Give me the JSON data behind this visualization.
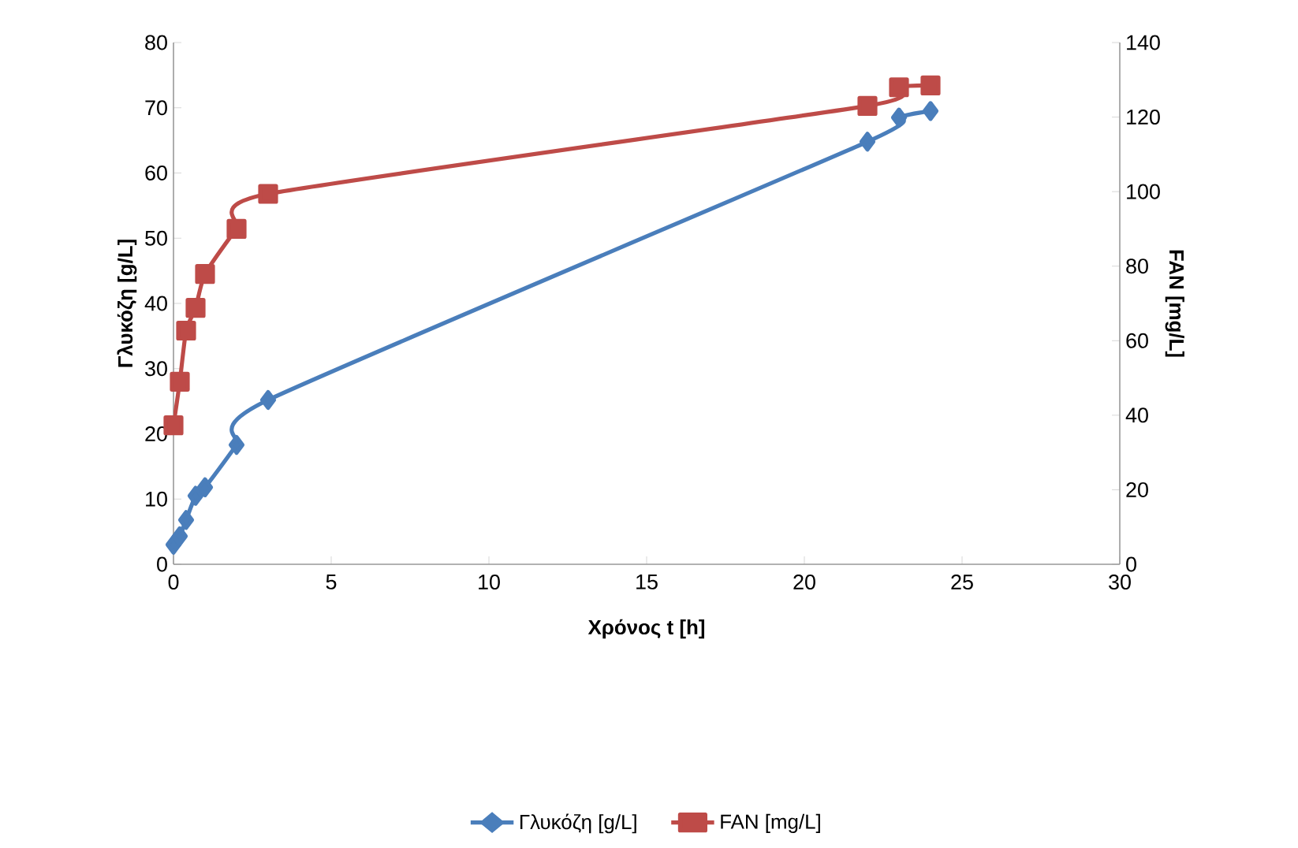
{
  "chart_data": {
    "type": "line",
    "xlabel": "Χρόνος t [h]",
    "ylabel": "Γλυκόζη [g/L]",
    "y2label": "FAN [mg/L]",
    "xlim": [
      0,
      30
    ],
    "xticks": [
      0,
      5,
      10,
      15,
      20,
      25,
      30
    ],
    "ylim": [
      0,
      80
    ],
    "yticks": [
      0,
      10,
      20,
      30,
      40,
      50,
      60,
      70,
      80
    ],
    "y2lim": [
      0,
      140
    ],
    "y2ticks": [
      0,
      20,
      40,
      60,
      80,
      100,
      120,
      140
    ],
    "legend": "bottom",
    "grid": false,
    "series": [
      {
        "name": "Γλυκόζη [g/L]",
        "color": "#4a7ebb",
        "marker": "diamond",
        "x": [
          0,
          0.2,
          0.4,
          0.7,
          1,
          2,
          3,
          22,
          23,
          24
        ],
        "values": [
          3,
          4.3,
          6.8,
          10.5,
          11.8,
          18.3,
          25.2,
          64.8,
          68.5,
          69.5
        ]
      },
      {
        "name": "FAN [mg/L]",
        "color": "#be4b48",
        "marker": "square",
        "axis": "y2",
        "x": [
          0,
          0.2,
          0.4,
          0.7,
          1,
          2,
          3,
          22,
          23,
          24
        ],
        "values": [
          37.3,
          49,
          62.7,
          68.8,
          77.9,
          90,
          99.4,
          123,
          128,
          128.5
        ]
      }
    ]
  }
}
